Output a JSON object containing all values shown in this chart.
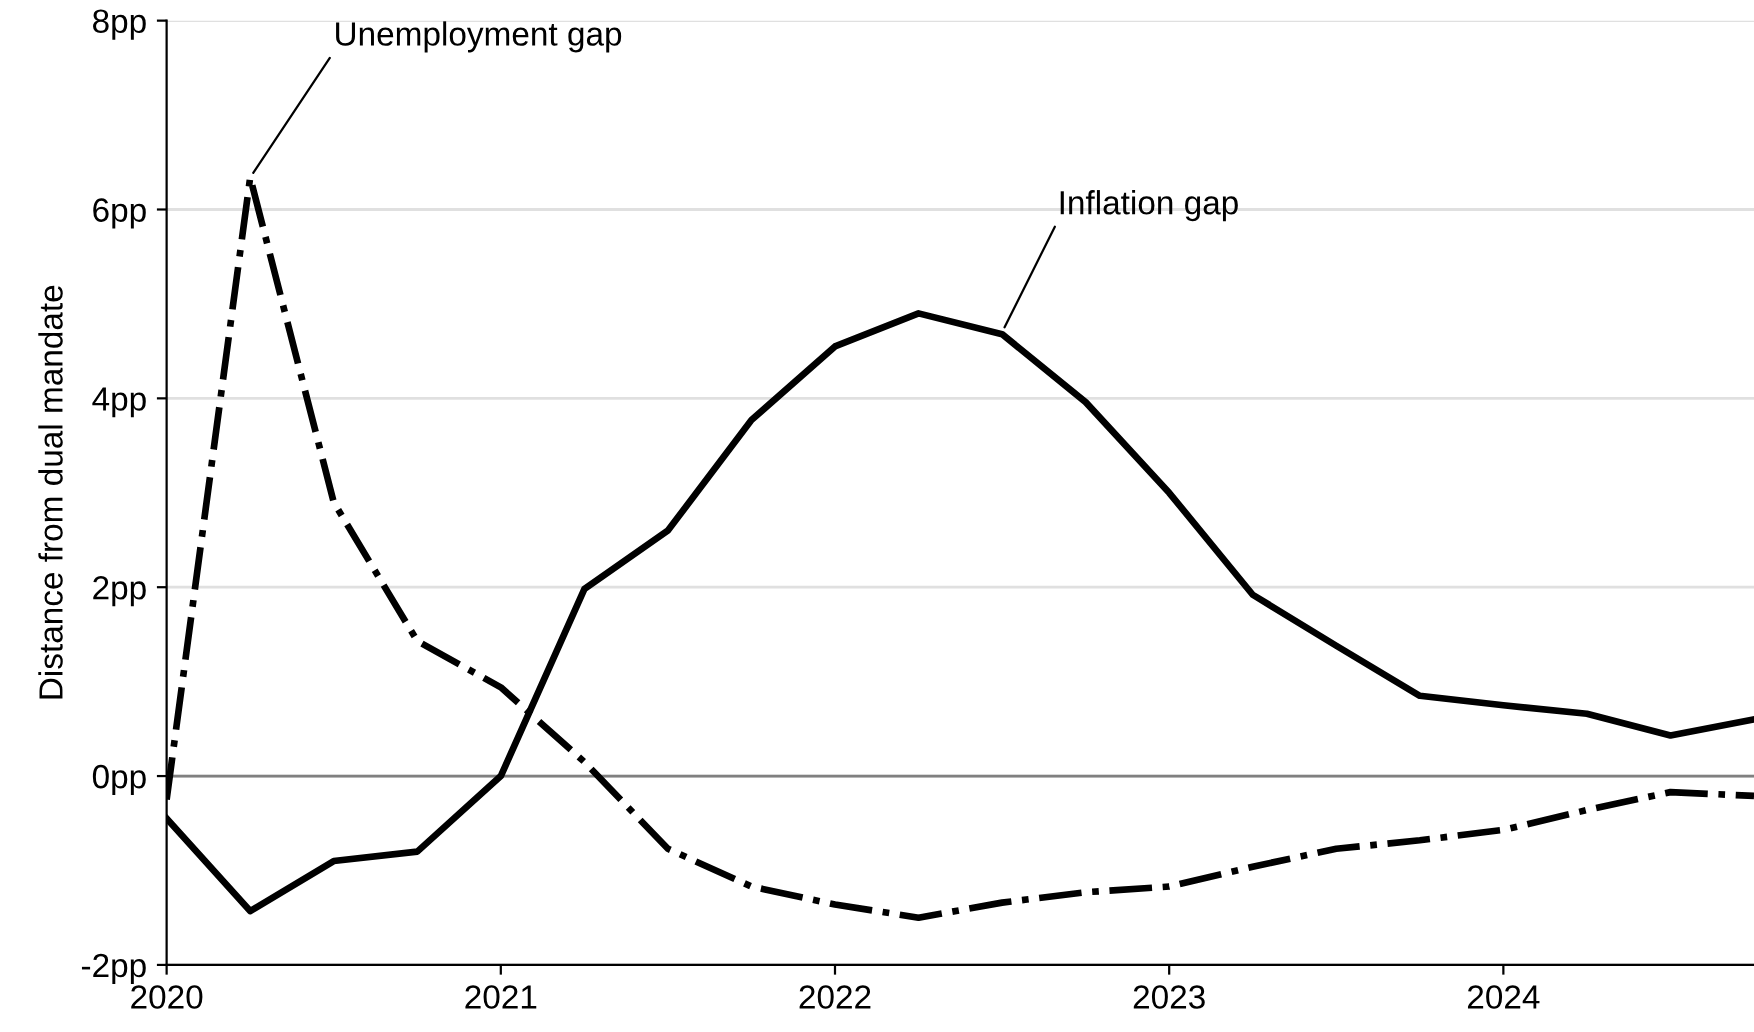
{
  "chart_data": {
    "type": "line",
    "ylabel": "Distance from dual mandate",
    "x": [
      2020,
      2020.25,
      2020.5,
      2020.75,
      2021,
      2021.25,
      2021.5,
      2021.75,
      2022,
      2022.25,
      2022.5,
      2022.75,
      2023,
      2023.25,
      2023.5,
      2023.75,
      2024,
      2024.25,
      2024.5,
      2024.75
    ],
    "series": [
      {
        "color": "#000000",
        "line_style": "solid",
        "values": [
          -0.45,
          -1.43,
          -0.9,
          -0.8,
          0,
          1.98,
          2.6,
          3.77,
          4.55,
          4.9,
          4.68,
          3.96,
          3.0,
          1.92,
          1.38,
          0.85,
          0.75,
          0.66,
          0.43,
          0.6
        ]
      },
      {
        "color": "#000000",
        "line_style": "dashdot",
        "values": [
          -0.25,
          6.34,
          2.9,
          1.43,
          0.94,
          0.15,
          -0.77,
          -1.17,
          -1.36,
          -1.5,
          -1.34,
          -1.23,
          -1.17,
          -0.96,
          -0.77,
          -0.68,
          -0.57,
          -0.36,
          -0.17,
          -0.21
        ]
      }
    ],
    "annotations": [
      {
        "text": "Unemployment gap",
        "x": 2020.25,
        "y": 6.34
      },
      {
        "text": "Inflation gap",
        "x": 2022.5,
        "y": 4.7
      }
    ],
    "xlim": [
      2020,
      2024.75
    ],
    "xticks": [
      2020,
      2021,
      2022,
      2023,
      2024
    ],
    "ylim": [
      -2,
      8
    ],
    "yticks": [
      {
        "value": -2,
        "label": "-2pp"
      },
      {
        "value": 0,
        "label": "0pp"
      },
      {
        "value": 2,
        "label": "2pp"
      },
      {
        "value": 4,
        "label": "4pp"
      },
      {
        "value": 6,
        "label": "6pp"
      },
      {
        "value": 8,
        "label": "8pp"
      }
    ],
    "ref_lines": [
      {
        "axis": "y",
        "value": 0,
        "color": "#808080"
      }
    ],
    "grid": "y",
    "marker": "none"
  }
}
